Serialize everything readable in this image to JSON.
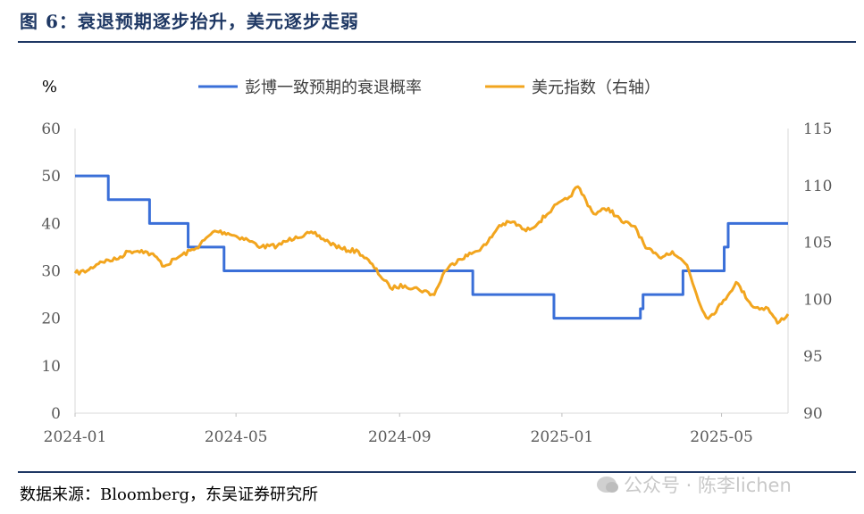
{
  "figure": {
    "title": "图 6：衰退预期逐步抬升，美元逐步走弱",
    "source": "数据来源：Bloomberg，东吴证券研究所",
    "watermark": "公众号 · 陈李lichen",
    "watermark_icon": "wechat-icon"
  },
  "chart_data": {
    "type": "line",
    "xlabel": "",
    "ylabel_left": "%",
    "ylabel_right": "",
    "legend_position": "top",
    "grid": false,
    "y_left": {
      "min": 0,
      "max": 60,
      "ticks": [
        0,
        10,
        20,
        30,
        40,
        50,
        60
      ]
    },
    "y_right": {
      "min": 90,
      "max": 115,
      "ticks": [
        90,
        95,
        100,
        105,
        110,
        115
      ]
    },
    "x_range": [
      "2024-01-01",
      "2025-06-20"
    ],
    "x_ticks": [
      "2024-01",
      "2024-05",
      "2024-09",
      "2025-01",
      "2025-05"
    ],
    "series": [
      {
        "name": "彭博一致预期的衰退概率",
        "axis": "left",
        "color": "#3a6fd8",
        "step": true,
        "points": [
          [
            "2024-01-01",
            50
          ],
          [
            "2024-01-26",
            45
          ],
          [
            "2024-02-26",
            40
          ],
          [
            "2024-03-26",
            35
          ],
          [
            "2024-04-22",
            30
          ],
          [
            "2024-10-26",
            25
          ],
          [
            "2024-12-26",
            20
          ],
          [
            "2025-03-01",
            22
          ],
          [
            "2025-03-03",
            25
          ],
          [
            "2025-04-02",
            30
          ],
          [
            "2025-05-03",
            35
          ],
          [
            "2025-05-06",
            40
          ],
          [
            "2025-06-20",
            40
          ]
        ]
      },
      {
        "name": "美元指数（右轴）",
        "axis": "right",
        "color": "#f2a51e",
        "step": false,
        "points": [
          [
            "2024-01-01",
            102.3
          ],
          [
            "2024-01-10",
            102.5
          ],
          [
            "2024-01-20",
            103.3
          ],
          [
            "2024-02-01",
            103.5
          ],
          [
            "2024-02-10",
            104.2
          ],
          [
            "2024-02-20",
            104.3
          ],
          [
            "2024-03-01",
            103.8
          ],
          [
            "2024-03-08",
            102.9
          ],
          [
            "2024-03-20",
            103.8
          ],
          [
            "2024-04-01",
            104.5
          ],
          [
            "2024-04-15",
            106.0
          ],
          [
            "2024-04-25",
            105.8
          ],
          [
            "2024-05-10",
            105.2
          ],
          [
            "2024-05-20",
            104.6
          ],
          [
            "2024-06-01",
            104.7
          ],
          [
            "2024-06-15",
            105.5
          ],
          [
            "2024-06-28",
            105.8
          ],
          [
            "2024-07-10",
            105.0
          ],
          [
            "2024-07-20",
            104.4
          ],
          [
            "2024-08-01",
            104.2
          ],
          [
            "2024-08-10",
            103.2
          ],
          [
            "2024-08-25",
            101.0
          ],
          [
            "2024-09-05",
            101.2
          ],
          [
            "2024-09-15",
            100.9
          ],
          [
            "2024-09-27",
            100.4
          ],
          [
            "2024-10-05",
            102.5
          ],
          [
            "2024-10-15",
            103.5
          ],
          [
            "2024-10-25",
            104.0
          ],
          [
            "2024-11-05",
            104.8
          ],
          [
            "2024-11-15",
            106.5
          ],
          [
            "2024-11-25",
            106.8
          ],
          [
            "2024-12-05",
            106.0
          ],
          [
            "2024-12-15",
            106.8
          ],
          [
            "2024-12-25",
            108.0
          ],
          [
            "2025-01-05",
            108.8
          ],
          [
            "2025-01-13",
            109.9
          ],
          [
            "2025-01-25",
            107.5
          ],
          [
            "2025-02-05",
            108.0
          ],
          [
            "2025-02-15",
            106.8
          ],
          [
            "2025-02-25",
            106.4
          ],
          [
            "2025-03-05",
            104.5
          ],
          [
            "2025-03-15",
            103.7
          ],
          [
            "2025-03-25",
            104.2
          ],
          [
            "2025-04-05",
            103.0
          ],
          [
            "2025-04-15",
            99.5
          ],
          [
            "2025-04-21",
            98.3
          ],
          [
            "2025-05-01",
            99.6
          ],
          [
            "2025-05-12",
            101.5
          ],
          [
            "2025-05-25",
            99.3
          ],
          [
            "2025-06-05",
            99.2
          ],
          [
            "2025-06-12",
            97.9
          ],
          [
            "2025-06-20",
            98.7
          ]
        ]
      }
    ]
  }
}
